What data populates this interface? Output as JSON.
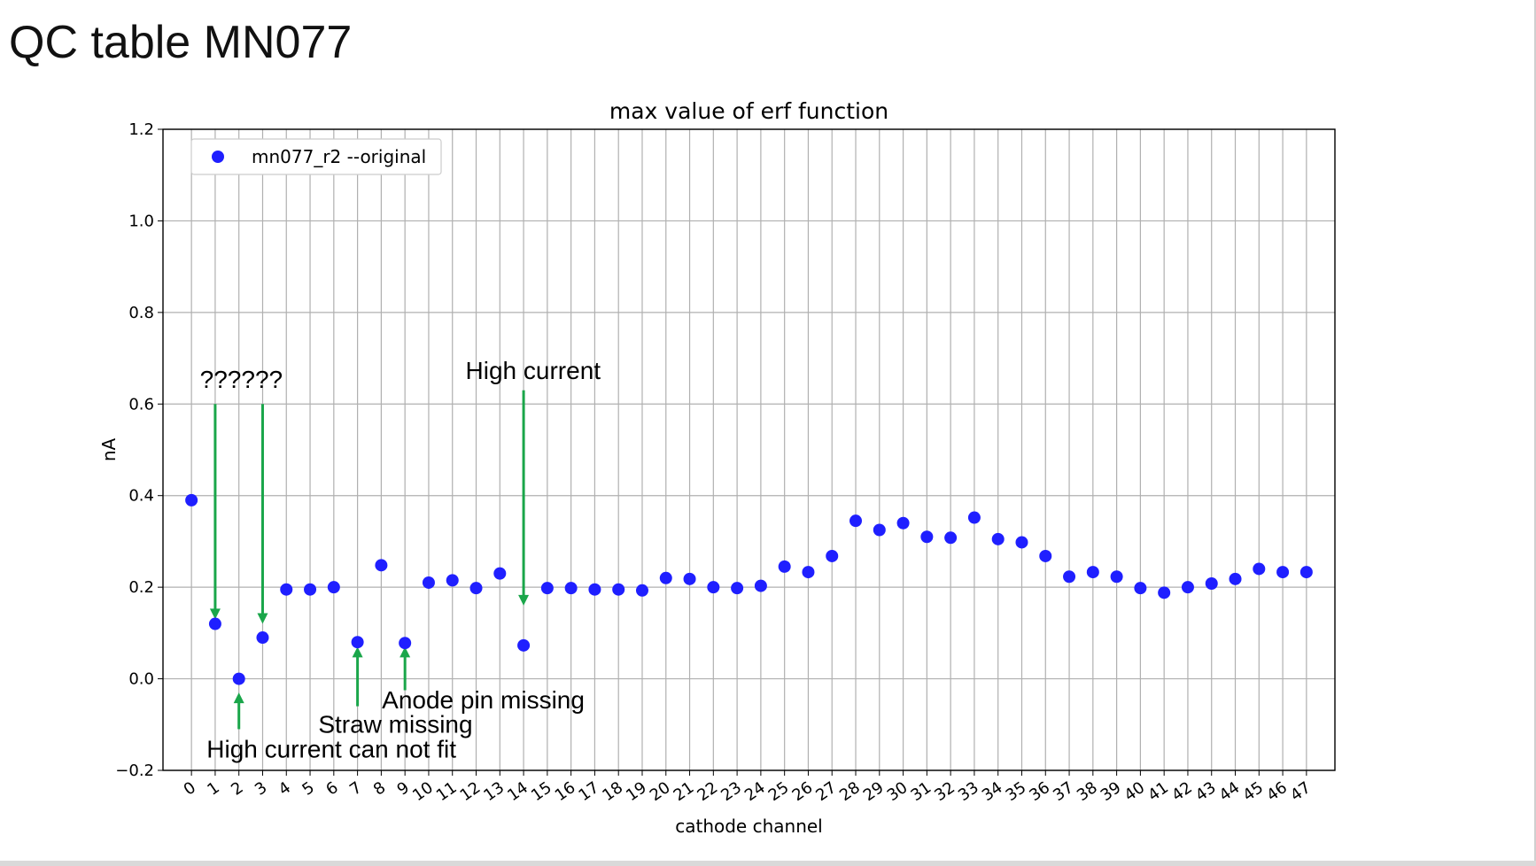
{
  "slide": {
    "title": "QC table MN077"
  },
  "chart_data": {
    "type": "scatter",
    "title": "max value of erf function",
    "xlabel": "cathode channel",
    "ylabel": "nA",
    "ylim": [
      -0.2,
      1.2
    ],
    "xlim": [
      -1.2,
      48.2
    ],
    "yticks": [
      -0.2,
      0.0,
      0.2,
      0.4,
      0.6,
      0.8,
      1.0,
      1.2
    ],
    "ytick_labels": [
      "−0.2",
      "0.0",
      "0.2",
      "0.4",
      "0.6",
      "0.8",
      "1.0",
      "1.2"
    ],
    "grid": true,
    "legend_position": "top-left",
    "marker_color": "#1f1fff",
    "series": [
      {
        "name": "mn077_r2 --original",
        "x": [
          0,
          1,
          2,
          3,
          4,
          5,
          6,
          7,
          8,
          9,
          10,
          11,
          12,
          13,
          14,
          15,
          16,
          17,
          18,
          19,
          20,
          21,
          22,
          23,
          24,
          25,
          26,
          27,
          28,
          29,
          30,
          31,
          32,
          33,
          34,
          35,
          36,
          37,
          38,
          39,
          40,
          41,
          42,
          43,
          44,
          45,
          46,
          47
        ],
        "y": [
          0.39,
          0.12,
          0.0,
          0.09,
          0.195,
          0.195,
          0.2,
          0.08,
          0.248,
          0.078,
          0.21,
          0.215,
          0.198,
          0.23,
          0.073,
          0.198,
          0.198,
          0.195,
          0.195,
          0.193,
          0.22,
          0.218,
          0.2,
          0.198,
          0.203,
          0.245,
          0.233,
          0.268,
          0.345,
          0.325,
          0.34,
          0.31,
          0.308,
          0.352,
          0.305,
          0.298,
          0.268,
          0.223,
          0.233,
          0.223,
          0.198,
          0.188,
          0.2,
          0.208,
          0.218,
          0.24,
          0.233,
          0.233
        ]
      }
    ],
    "annotations": [
      {
        "text": "??????",
        "x": 2.1,
        "y": 0.635,
        "arrows": [
          {
            "from": [
              1,
              0.6
            ],
            "to": [
              1,
              0.13
            ]
          },
          {
            "from": [
              3,
              0.6
            ],
            "to": [
              3,
              0.12
            ]
          }
        ]
      },
      {
        "text": "High current",
        "x": 14.4,
        "y": 0.655,
        "arrows": [
          {
            "from": [
              14,
              0.63
            ],
            "to": [
              14,
              0.16
            ]
          }
        ]
      },
      {
        "text": "Anode pin missing",
        "x": 12.3,
        "y": -0.065,
        "arrows": [
          {
            "from": [
              9,
              -0.025
            ],
            "to": [
              9,
              0.07
            ]
          }
        ]
      },
      {
        "text": "Straw missing",
        "x": 8.6,
        "y": -0.118,
        "arrows": [
          {
            "from": [
              7,
              -0.06
            ],
            "to": [
              7,
              0.07
            ]
          }
        ]
      },
      {
        "text": "High current can not fit",
        "x": 5.9,
        "y": -0.172,
        "arrows": [
          {
            "from": [
              2,
              -0.11
            ],
            "to": [
              2,
              -0.03
            ]
          }
        ]
      }
    ],
    "annotation_arrow_color": "#1aa64a"
  }
}
